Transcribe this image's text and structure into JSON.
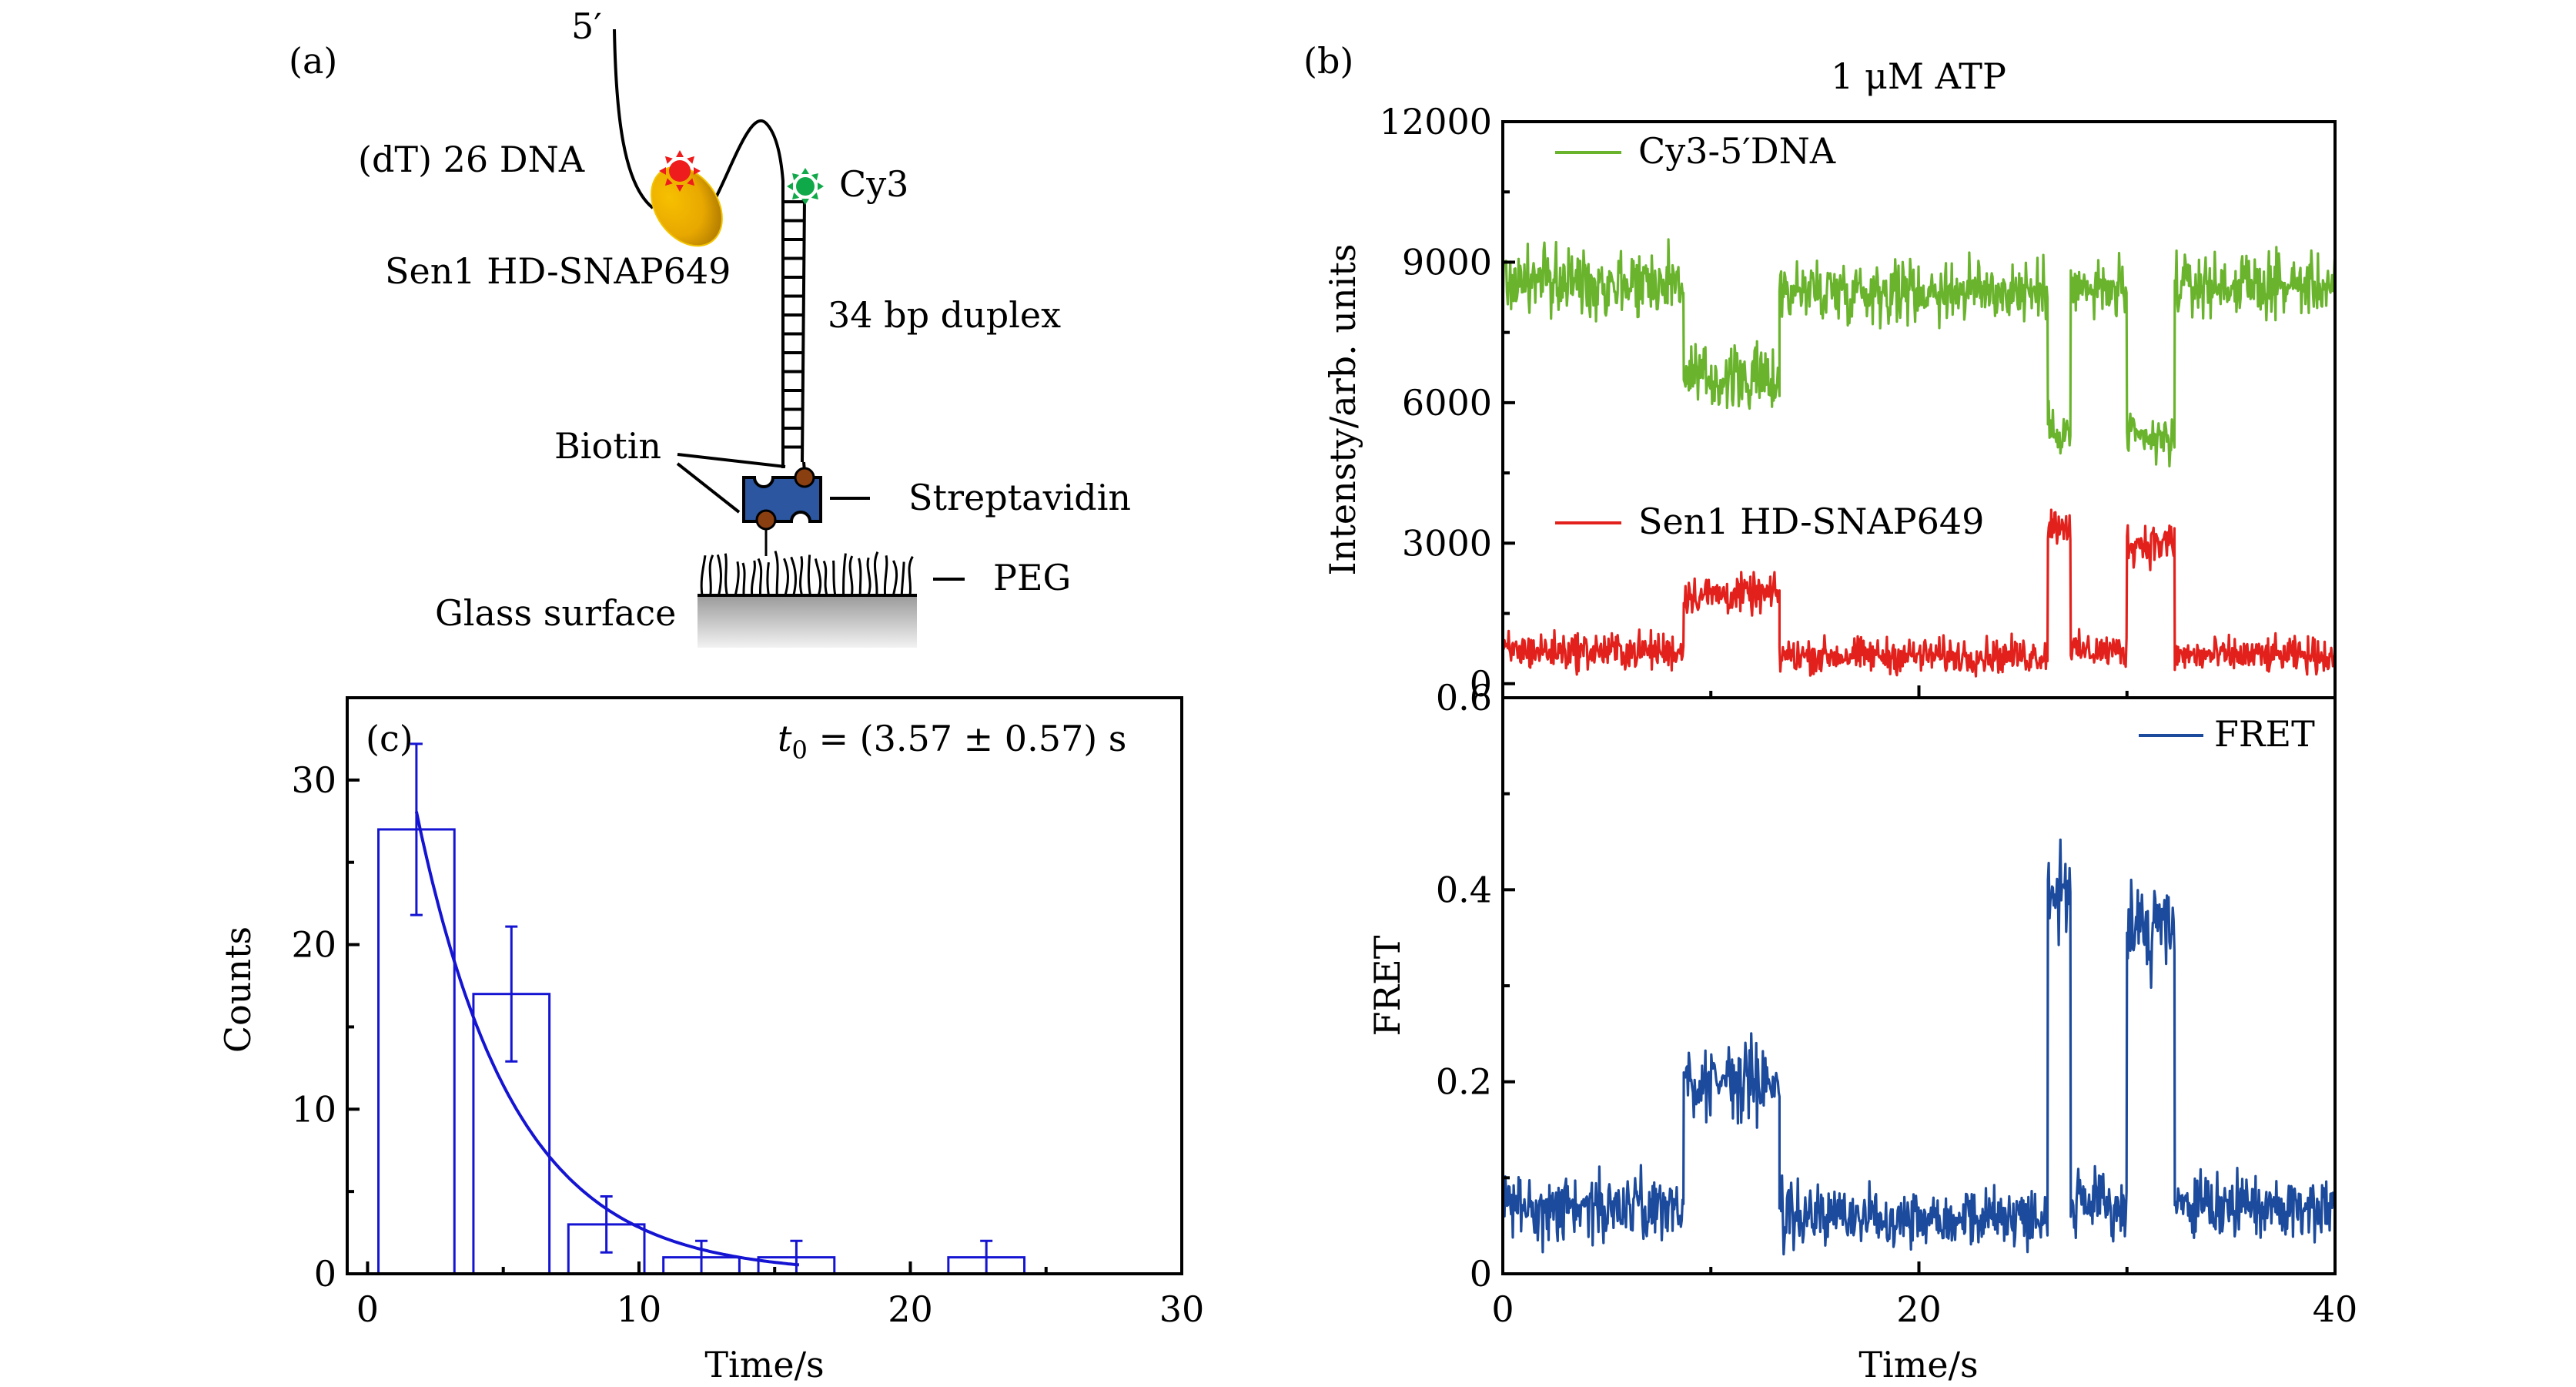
{
  "figure": {
    "panel_a": {
      "letter": "(a)",
      "labels": {
        "five_prime": "5′",
        "dna": "(dT) 26 DNA",
        "cy3": "Cy3",
        "protein": "Sen1 HD-SNAP649",
        "duplex": "34 bp duplex",
        "biotin": "Biotin",
        "streptavidin": "Streptavidin",
        "peg": "PEG",
        "glass": "Glass surface"
      },
      "colors": {
        "red_dye": "#ee1c1c",
        "green_dye": "#10a94a",
        "protein": "#f0b400",
        "streptavidin": "#2c56a0",
        "biotin": "#8a3f10"
      }
    },
    "panel_b_letter": "(b)",
    "panel_c_letter": "(c)"
  },
  "chart_data": [
    {
      "id": "b-intensity",
      "type": "line",
      "title": "1 μM ATP",
      "xlabel": "",
      "ylabel": "Intensty/arb. units",
      "xlim": [
        0,
        40
      ],
      "ylim": [
        -300,
        12000
      ],
      "xticks_major": [
        0,
        20,
        40
      ],
      "xticks_minor": [
        10,
        30
      ],
      "yticks": [
        0,
        3000,
        6000,
        9000,
        12000
      ],
      "ytick_labels": [
        "0",
        "3000",
        "6000",
        "9000",
        "12000"
      ],
      "yticks_minor": [
        1500,
        4500,
        7500,
        10500
      ],
      "legend": "top-left",
      "series": [
        {
          "name": "Cy3-5′DNA",
          "color": "#6ab42d",
          "segments": [
            {
              "t": [
                0,
                8.7
              ],
              "mean": 8600,
              "noise": 1100
            },
            {
              "t": [
                8.7,
                13.3
              ],
              "mean": 6500,
              "noise": 1000
            },
            {
              "t": [
                13.3,
                26.2
              ],
              "mean": 8400,
              "noise": 1000
            },
            {
              "t": [
                26.2,
                27.3
              ],
              "mean": 5400,
              "noise": 700
            },
            {
              "t": [
                27.3,
                30.0
              ],
              "mean": 8400,
              "noise": 900
            },
            {
              "t": [
                30.0,
                32.3
              ],
              "mean": 5200,
              "noise": 800
            },
            {
              "t": [
                32.3,
                40
              ],
              "mean": 8500,
              "noise": 900
            }
          ]
        },
        {
          "name": "Sen1 HD-SNAP649",
          "color": "#e3211c",
          "segments": [
            {
              "t": [
                0,
                8.7
              ],
              "mean": 700,
              "noise": 600
            },
            {
              "t": [
                8.7,
                13.3
              ],
              "mean": 1900,
              "noise": 600
            },
            {
              "t": [
                13.3,
                26.2
              ],
              "mean": 600,
              "noise": 550
            },
            {
              "t": [
                26.2,
                27.3
              ],
              "mean": 3400,
              "noise": 600
            },
            {
              "t": [
                27.3,
                30.0
              ],
              "mean": 700,
              "noise": 550
            },
            {
              "t": [
                30.0,
                32.3
              ],
              "mean": 3000,
              "noise": 700
            },
            {
              "t": [
                32.3,
                40
              ],
              "mean": 600,
              "noise": 550
            }
          ]
        }
      ]
    },
    {
      "id": "b-fret",
      "type": "line",
      "xlabel": "Time/s",
      "ylabel": "FRET",
      "xlim": [
        0,
        40
      ],
      "ylim": [
        0,
        0.6
      ],
      "xticks_major": [
        0,
        20,
        40
      ],
      "xtick_labels": [
        "0",
        "20",
        "40"
      ],
      "xticks_minor": [
        10,
        30
      ],
      "yticks": [
        0,
        0.2,
        0.4,
        0.6
      ],
      "ytick_labels": [
        "0",
        "0.2",
        "0.4",
        "0.6"
      ],
      "yticks_minor": [
        0.1,
        0.3,
        0.5
      ],
      "legend": "top-right",
      "series": [
        {
          "name": "FRET",
          "color": "#1c4a9c",
          "segments": [
            {
              "t": [
                0,
                8.7
              ],
              "mean": 0.07,
              "noise": 0.05
            },
            {
              "t": [
                8.7,
                13.3
              ],
              "mean": 0.2,
              "noise": 0.06
            },
            {
              "t": [
                13.3,
                26.2
              ],
              "mean": 0.06,
              "noise": 0.045
            },
            {
              "t": [
                26.2,
                27.3
              ],
              "mean": 0.4,
              "noise": 0.07
            },
            {
              "t": [
                27.3,
                30.0
              ],
              "mean": 0.07,
              "noise": 0.05
            },
            {
              "t": [
                30.0,
                32.3
              ],
              "mean": 0.36,
              "noise": 0.07
            },
            {
              "t": [
                32.3,
                40
              ],
              "mean": 0.07,
              "noise": 0.045
            }
          ]
        }
      ]
    },
    {
      "id": "c-histogram",
      "type": "bar",
      "title": "",
      "annotation": "t₀ = (3.57 ± 0.57) s",
      "annotation_var": "t",
      "annotation_sub": "0",
      "annotation_rest": " = (3.57 ± 0.57) s",
      "xlabel": "Time/s",
      "ylabel": "Counts",
      "xlim": [
        -0.75,
        30
      ],
      "ylim": [
        0,
        35
      ],
      "xticks_major": [
        0,
        10,
        20,
        30
      ],
      "xtick_labels": [
        "0",
        "10",
        "20",
        "30"
      ],
      "xticks_minor": [
        5,
        15,
        25
      ],
      "yticks": [
        0,
        10,
        20,
        30
      ],
      "ytick_labels": [
        "0",
        "10",
        "20",
        "30"
      ],
      "yticks_minor": [
        5,
        15,
        25
      ],
      "color": "#1414d2",
      "bins": [
        {
          "x0": 0.4,
          "x1": 3.2,
          "center": 1.8,
          "count": 27,
          "err_low": 21.8,
          "err_high": 32.2
        },
        {
          "x0": 3.9,
          "x1": 6.7,
          "center": 5.3,
          "count": 17,
          "err_low": 12.9,
          "err_high": 21.1
        },
        {
          "x0": 7.4,
          "x1": 10.2,
          "center": 8.8,
          "count": 3,
          "err_low": 1.3,
          "err_high": 4.7
        },
        {
          "x0": 10.9,
          "x1": 13.7,
          "center": 12.3,
          "count": 1,
          "err_low": 0,
          "err_high": 2
        },
        {
          "x0": 14.4,
          "x1": 17.2,
          "center": 15.8,
          "count": 1,
          "err_low": 0,
          "err_high": 2
        },
        {
          "x0": 21.4,
          "x1": 24.2,
          "center": 22.8,
          "count": 1,
          "err_low": 0,
          "err_high": 2
        }
      ],
      "fit": {
        "type": "exponential",
        "A": 46.5,
        "tau": 3.57,
        "x_range": [
          1.8,
          15.9
        ]
      }
    }
  ]
}
